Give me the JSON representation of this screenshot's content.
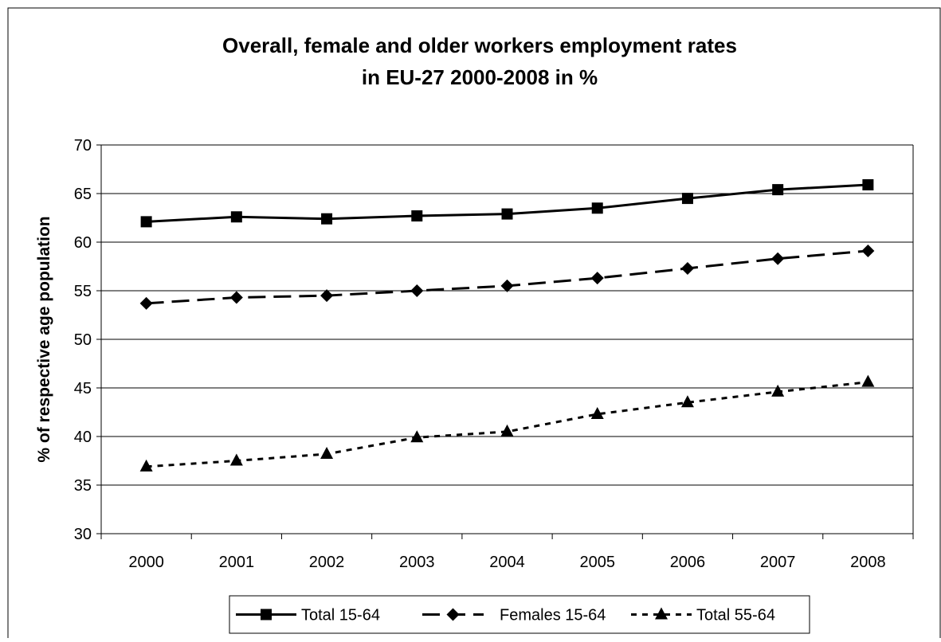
{
  "chart_data": {
    "type": "line",
    "title_line1": "Overall, female and older workers employment rates",
    "title_line2": "in EU-27 2000-2008 in %",
    "xlabel": "",
    "ylabel": "% of respective age population",
    "ylim": [
      30,
      70
    ],
    "yticks": [
      "30",
      "35",
      "40",
      "45",
      "50",
      "55",
      "60",
      "65",
      "70"
    ],
    "categories": [
      "2000",
      "2001",
      "2002",
      "2003",
      "2004",
      "2005",
      "2006",
      "2007",
      "2008"
    ],
    "grid": "horizontal",
    "legend_position": "bottom",
    "series": [
      {
        "name": "Total 15-64",
        "style": "solid",
        "marker": "square",
        "color": "#000000",
        "values": [
          62.1,
          62.6,
          62.4,
          62.7,
          62.9,
          63.5,
          64.5,
          65.4,
          65.9
        ]
      },
      {
        "name": "Females 15-64",
        "style": "long-dash",
        "marker": "diamond",
        "color": "#000000",
        "values": [
          53.7,
          54.3,
          54.5,
          55.0,
          55.5,
          56.3,
          57.3,
          58.3,
          59.1
        ]
      },
      {
        "name": "Total 55-64",
        "style": "short-dash",
        "marker": "triangle",
        "color": "#000000",
        "values": [
          36.9,
          37.5,
          38.2,
          39.9,
          40.5,
          42.3,
          43.5,
          44.6,
          45.6
        ]
      }
    ]
  }
}
